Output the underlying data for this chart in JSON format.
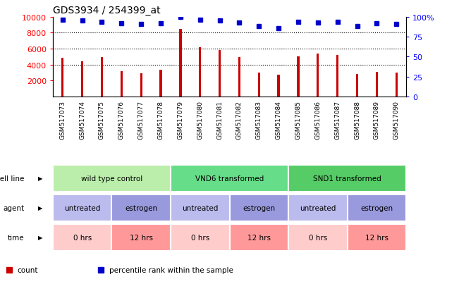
{
  "title": "GDS3934 / 254399_at",
  "samples": [
    "GSM517073",
    "GSM517074",
    "GSM517075",
    "GSM517076",
    "GSM517077",
    "GSM517078",
    "GSM517079",
    "GSM517080",
    "GSM517081",
    "GSM517082",
    "GSM517083",
    "GSM517084",
    "GSM517085",
    "GSM517086",
    "GSM517087",
    "GSM517088",
    "GSM517089",
    "GSM517090"
  ],
  "counts": [
    4900,
    4450,
    4950,
    3200,
    2900,
    3350,
    8450,
    6200,
    5850,
    4950,
    3000,
    2700,
    5000,
    5400,
    5250,
    2850,
    3100,
    3000
  ],
  "percentiles": [
    9600,
    9500,
    9400,
    9200,
    9100,
    9200,
    10000,
    9600,
    9500,
    9300,
    8800,
    8600,
    9400,
    9300,
    9400,
    8800,
    9200,
    9100
  ],
  "bar_color": "#cc0000",
  "dot_color": "#0000cc",
  "ylim_left": [
    0,
    10000
  ],
  "ylim_right": [
    0,
    100
  ],
  "yticks_left": [
    2000,
    4000,
    6000,
    8000,
    10000
  ],
  "yticks_right": [
    0,
    25,
    50,
    75,
    100
  ],
  "cell_line_groups": [
    {
      "label": "wild type control",
      "start": 0,
      "end": 6,
      "color": "#bbeeaa"
    },
    {
      "label": "VND6 transformed",
      "start": 6,
      "end": 12,
      "color": "#66dd88"
    },
    {
      "label": "SND1 transformed",
      "start": 12,
      "end": 18,
      "color": "#55cc66"
    }
  ],
  "agent_groups": [
    {
      "label": "untreated",
      "start": 0,
      "end": 3,
      "color": "#bbbbee"
    },
    {
      "label": "estrogen",
      "start": 3,
      "end": 6,
      "color": "#9999dd"
    },
    {
      "label": "untreated",
      "start": 6,
      "end": 9,
      "color": "#bbbbee"
    },
    {
      "label": "estrogen",
      "start": 9,
      "end": 12,
      "color": "#9999dd"
    },
    {
      "label": "untreated",
      "start": 12,
      "end": 15,
      "color": "#bbbbee"
    },
    {
      "label": "estrogen",
      "start": 15,
      "end": 18,
      "color": "#9999dd"
    }
  ],
  "time_groups": [
    {
      "label": "0 hrs",
      "start": 0,
      "end": 3,
      "color": "#ffcccc"
    },
    {
      "label": "12 hrs",
      "start": 3,
      "end": 6,
      "color": "#ff9999"
    },
    {
      "label": "0 hrs",
      "start": 6,
      "end": 9,
      "color": "#ffcccc"
    },
    {
      "label": "12 hrs",
      "start": 9,
      "end": 12,
      "color": "#ff9999"
    },
    {
      "label": "0 hrs",
      "start": 12,
      "end": 15,
      "color": "#ffcccc"
    },
    {
      "label": "12 hrs",
      "start": 15,
      "end": 18,
      "color": "#ff9999"
    }
  ],
  "legend_items": [
    {
      "label": "count",
      "color": "#cc0000"
    },
    {
      "label": "percentile rank within the sample",
      "color": "#0000cc"
    }
  ],
  "row_labels": [
    "cell line",
    "agent",
    "time"
  ]
}
